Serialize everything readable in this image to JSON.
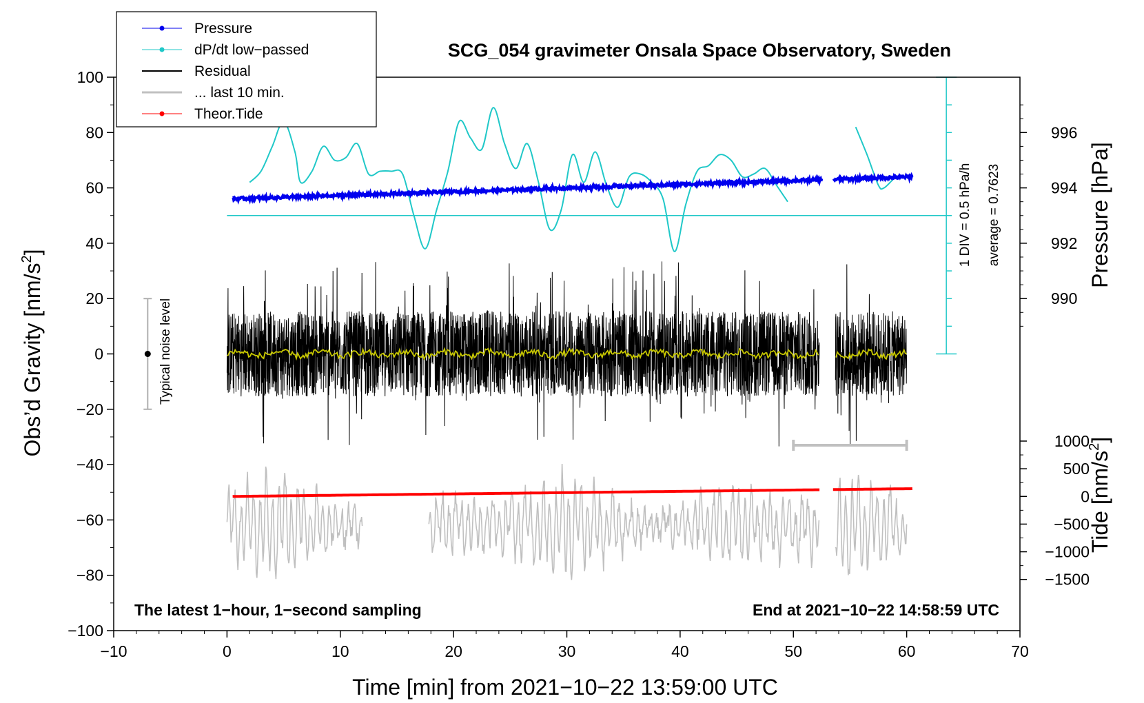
{
  "chart_data": {
    "type": "line",
    "title": "SCG_054 gravimeter Onsala Space Observatory, Sweden",
    "xlabel": "Time [min] from 2021−10−22 13:59:00 UTC",
    "ylabel_main": "Obs’d Gravity [nm/s",
    "ylabel_sup": "2",
    "ylabel_close": "]",
    "ylabel_pressure": "Pressure [hPa]",
    "ylabel_tide": "Tide [nm/s",
    "ylabel_tide_sup": "2",
    "ylabel_tide_close": "]",
    "xlim": [
      -10,
      70
    ],
    "ylim": [
      -100,
      100
    ],
    "x_ticks": [
      -10,
      0,
      10,
      20,
      30,
      40,
      50,
      60,
      70
    ],
    "x_tick_labels": [
      "−10",
      "0",
      "10",
      "20",
      "30",
      "40",
      "50",
      "60",
      "70"
    ],
    "y_ticks": [
      -100,
      -80,
      -60,
      -40,
      -20,
      0,
      20,
      40,
      60,
      80,
      100
    ],
    "y_tick_labels": [
      "−100",
      "−80",
      "−60",
      "−40",
      "−20",
      "0",
      "20",
      "40",
      "60",
      "80",
      "100"
    ],
    "pressure_ticks": [
      990,
      992,
      994,
      996
    ],
    "pressure_tick_labels": [
      "990",
      "992",
      "994",
      "996"
    ],
    "pressure_scale_hpa_per_gravity_unit": 0.1,
    "pressure_ref_hpa": 988,
    "tide_ticks": [
      -1500,
      -1000,
      -500,
      0,
      500,
      1000
    ],
    "tide_tick_labels": [
      "−1500",
      "−1000",
      "−500",
      "0",
      "500",
      "1000"
    ],
    "tide_scale_per_gravity_unit": 0.02,
    "tide_ref": -51.5,
    "legend": [
      "Pressure",
      "dP/dt low−passed",
      "Residual",
      "... last 10 min.",
      "Theor.Tide"
    ],
    "series": [
      {
        "name": "Pressure",
        "color": "#0000ee",
        "x_range": [
          0.5,
          60.5
        ],
        "gap": [
          52.5,
          53.5
        ],
        "y_start_hpa": 993.6,
        "y_end_hpa": 994.4
      },
      {
        "name": "dP/dt low−passed",
        "color": "#20c8c8",
        "x": [
          2.0,
          3.0,
          4.0,
          5.0,
          6.0,
          6.5,
          7.5,
          8.5,
          9.5,
          10.5,
          11.5,
          12.5,
          13.5,
          14.5,
          15.5,
          16.5,
          17.5,
          18.5,
          19.5,
          20.5,
          21.5,
          22.5,
          23.5,
          24.5,
          25.5,
          26.5,
          27.5,
          28.5,
          29.5,
          30.5,
          31.5,
          32.5,
          33.5,
          34.5,
          35.5,
          36.5,
          37.5,
          38.5,
          39.5,
          40.5,
          41.5,
          42.5,
          43.5,
          44.5,
          45.5,
          46.5,
          47.5,
          48.5,
          49.5,
          55.5,
          56.5,
          57.5,
          58.0,
          59.0
        ],
        "y": [
          62,
          66,
          75,
          84,
          73,
          62,
          66,
          75,
          70,
          71,
          76,
          65,
          66,
          66,
          65,
          50,
          38,
          52,
          66,
          84,
          78,
          74,
          89,
          76,
          67,
          76,
          62,
          45,
          52,
          72,
          62,
          73,
          61,
          53,
          64,
          65,
          62,
          56,
          37,
          54,
          66,
          68,
          72,
          70,
          64,
          65,
          67,
          61,
          55,
          82,
          72,
          61,
          60,
          64
        ]
      },
      {
        "name": "Residual",
        "color": "#000000",
        "x_range": [
          0.0,
          60.0
        ],
        "gap": [
          52.3,
          53.7
        ],
        "amplitude": 28
      },
      {
        "name": "Residual smoothed",
        "color": "#c8c800",
        "x_range": [
          0.0,
          60.0
        ],
        "gap": [
          52.3,
          53.7
        ]
      },
      {
        "name": "... last 10 min.",
        "color": "#c0c0c0",
        "x_range": [
          0.0,
          60.0
        ],
        "gaps": [
          [
            12.0,
            17.8
          ],
          [
            52.3,
            53.7
          ]
        ],
        "center": -62,
        "amplitude": 21
      },
      {
        "name": "Theor.Tide",
        "color": "#ff0000",
        "x_range": [
          0.5,
          60.5
        ],
        "gap": [
          52.5,
          53.5
        ],
        "y_start": -51.5,
        "y_end": -48.7
      }
    ],
    "pressure_scale_bar": {
      "label_1": "1 DIV = 0.5 hPa/h",
      "label_2": "average = 0.7623",
      "top": 100,
      "bottom": 0,
      "divisions": 10
    },
    "dpdt_baseline": 50,
    "noise_level": {
      "label": "Typical noise level",
      "x": -7,
      "y_min": -20,
      "y_max": 20
    },
    "last10_bar": {
      "x_start": 50,
      "x_end": 60,
      "y": -33
    },
    "footer_left": "The latest 1−hour, 1−second sampling",
    "footer_right": "End at 2021−10−22 14:58:59 UTC"
  }
}
